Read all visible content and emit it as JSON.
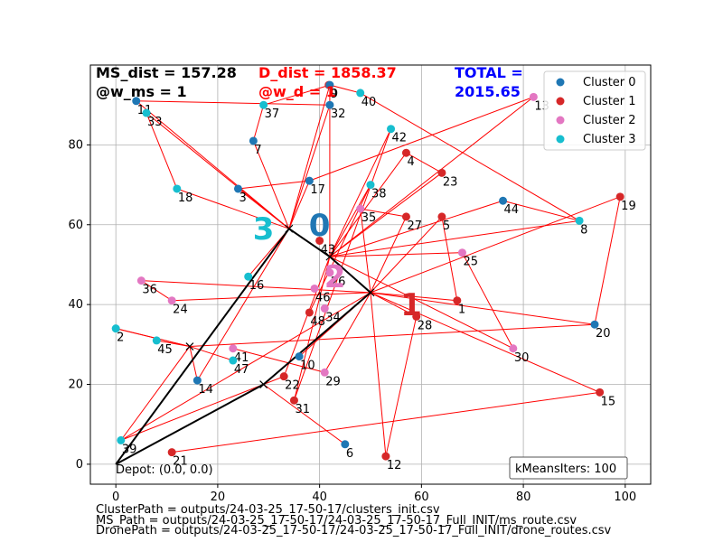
{
  "header": {
    "ms_dist": "MS_dist = 157.28",
    "w_ms": "@w_ms = 1",
    "d_dist": "D_dist = 1858.37",
    "w_d": "@w_d = 1",
    "total_line1": "TOTAL =",
    "total_line2": "2015.65"
  },
  "depot_label": "Depot: (0.0, 0.0)",
  "kmeans_label": "kMeansIters: 100",
  "footer": [
    "ClusterPath = outputs/24-03-25_17-50-17/clusters_init.csv",
    "MS_Path = outputs/24-03-25_17-50-17/24-03-25_17-50-17_Full_INIT/ms_route.csv",
    "DronePath = outputs/24-03-25_17-50-17/24-03-25_17-50-17_Full_INIT/drone_routes.csv"
  ],
  "colors": {
    "cluster0": "#1f77b4",
    "cluster1": "#d62728",
    "cluster2": "#e377c2",
    "cluster3": "#17becf",
    "ms_route": "#000000",
    "drone_route": "#ff0000",
    "total": "#0000ff"
  },
  "chart_data": {
    "type": "scatter",
    "xlim": [
      -5,
      105
    ],
    "ylim": [
      -5,
      100
    ],
    "xticks": [
      0,
      20,
      40,
      60,
      80,
      100
    ],
    "yticks": [
      0,
      20,
      40,
      60,
      80
    ],
    "grid": true,
    "legend_placement": "top-right",
    "legend": [
      "Cluster 0",
      "Cluster 1",
      "Cluster 2",
      "Cluster 3"
    ],
    "points": [
      {
        "id": "0",
        "x": 41.8,
        "y": 95.0,
        "cluster": 1
      },
      {
        "id": "1",
        "x": 67.0,
        "y": 41.0,
        "cluster": 1
      },
      {
        "id": "2",
        "x": 0.0,
        "y": 34.0,
        "cluster": 3
      },
      {
        "id": "3",
        "x": 24.0,
        "y": 69.0,
        "cluster": 0
      },
      {
        "id": "4",
        "x": 57.0,
        "y": 78.0,
        "cluster": 1
      },
      {
        "id": "5",
        "x": 64.0,
        "y": 62.0,
        "cluster": 1
      },
      {
        "id": "6",
        "x": 45.0,
        "y": 5.0,
        "cluster": 0
      },
      {
        "id": "7",
        "x": 27.0,
        "y": 81.0,
        "cluster": 0
      },
      {
        "id": "8",
        "x": 91.0,
        "y": 61.0,
        "cluster": 3
      },
      {
        "id": "9",
        "x": 42.0,
        "y": 95.0,
        "cluster": 0
      },
      {
        "id": "10",
        "x": 36.0,
        "y": 27.0,
        "cluster": 0
      },
      {
        "id": "11",
        "x": 4.0,
        "y": 91.0,
        "cluster": 0
      },
      {
        "id": "12",
        "x": 53.0,
        "y": 2.0,
        "cluster": 1
      },
      {
        "id": "13",
        "x": 82.0,
        "y": 92.0,
        "cluster": 2
      },
      {
        "id": "14",
        "x": 16.0,
        "y": 21.0,
        "cluster": 0
      },
      {
        "id": "15",
        "x": 95.0,
        "y": 18.0,
        "cluster": 1
      },
      {
        "id": "16",
        "x": 26.0,
        "y": 47.0,
        "cluster": 3
      },
      {
        "id": "17",
        "x": 38.0,
        "y": 71.0,
        "cluster": 0
      },
      {
        "id": "18",
        "x": 12.0,
        "y": 69.0,
        "cluster": 3
      },
      {
        "id": "19",
        "x": 99.0,
        "y": 67.0,
        "cluster": 1
      },
      {
        "id": "20",
        "x": 94.0,
        "y": 35.0,
        "cluster": 0
      },
      {
        "id": "21",
        "x": 11.0,
        "y": 3.0,
        "cluster": 1
      },
      {
        "id": "22",
        "x": 33.0,
        "y": 22.0,
        "cluster": 1
      },
      {
        "id": "23",
        "x": 64.0,
        "y": 73.0,
        "cluster": 1
      },
      {
        "id": "24",
        "x": 11.0,
        "y": 41.0,
        "cluster": 2
      },
      {
        "id": "25",
        "x": 68.0,
        "y": 53.0,
        "cluster": 2
      },
      {
        "id": "26",
        "x": 42.0,
        "y": 48.0,
        "cluster": 2
      },
      {
        "id": "27",
        "x": 57.0,
        "y": 62.0,
        "cluster": 1
      },
      {
        "id": "28",
        "x": 59.0,
        "y": 37.0,
        "cluster": 1
      },
      {
        "id": "29",
        "x": 41.0,
        "y": 23.0,
        "cluster": 2
      },
      {
        "id": "30",
        "x": 78.0,
        "y": 29.0,
        "cluster": 2
      },
      {
        "id": "31",
        "x": 35.0,
        "y": 16.0,
        "cluster": 1
      },
      {
        "id": "32",
        "x": 42.0,
        "y": 90.0,
        "cluster": 0
      },
      {
        "id": "33",
        "x": 6.0,
        "y": 88.0,
        "cluster": 3
      },
      {
        "id": "34",
        "x": 41.0,
        "y": 39.0,
        "cluster": 2
      },
      {
        "id": "35",
        "x": 48.0,
        "y": 64.0,
        "cluster": 2
      },
      {
        "id": "36",
        "x": 5.0,
        "y": 46.0,
        "cluster": 2
      },
      {
        "id": "37",
        "x": 29.0,
        "y": 90.0,
        "cluster": 3
      },
      {
        "id": "38",
        "x": 50.0,
        "y": 70.0,
        "cluster": 3
      },
      {
        "id": "39",
        "x": 1.0,
        "y": 6.0,
        "cluster": 3
      },
      {
        "id": "40",
        "x": 48.0,
        "y": 93.0,
        "cluster": 3
      },
      {
        "id": "41",
        "x": 23.0,
        "y": 29.0,
        "cluster": 2
      },
      {
        "id": "42",
        "x": 54.0,
        "y": 84.0,
        "cluster": 3
      },
      {
        "id": "43",
        "x": 40.0,
        "y": 56.0,
        "cluster": 1
      },
      {
        "id": "44",
        "x": 76.0,
        "y": 66.0,
        "cluster": 0
      },
      {
        "id": "45",
        "x": 8.0,
        "y": 31.0,
        "cluster": 3
      },
      {
        "id": "46",
        "x": 39.0,
        "y": 44.0,
        "cluster": 2
      },
      {
        "id": "47",
        "x": 23.0,
        "y": 26.0,
        "cluster": 3
      },
      {
        "id": "48",
        "x": 38.0,
        "y": 38.0,
        "cluster": 1
      }
    ],
    "cluster_centers": [
      {
        "label": "0",
        "x": 40.0,
        "y": 60.0,
        "cluster": 0
      },
      {
        "label": "1",
        "x": 58.0,
        "y": 40.0,
        "cluster": 1
      },
      {
        "label": "2",
        "x": 43.0,
        "y": 47.0,
        "cluster": 2
      },
      {
        "label": "3",
        "x": 29.0,
        "y": 59.0,
        "cluster": 3
      }
    ],
    "ms_route": [
      [
        0,
        0
      ],
      [
        34,
        59
      ],
      [
        42,
        52
      ],
      [
        50,
        43
      ],
      [
        29,
        20
      ],
      [
        0,
        0
      ]
    ],
    "ms_stops": [
      [
        34,
        59
      ],
      [
        42,
        52
      ],
      [
        50,
        43
      ],
      [
        29,
        20
      ],
      [
        14.5,
        29.5
      ]
    ],
    "drone_segments": [
      [
        [
          34,
          59
        ],
        [
          4,
          91
        ]
      ],
      [
        [
          4,
          91
        ],
        [
          42,
          90
        ]
      ],
      [
        [
          34,
          59
        ],
        [
          6,
          88
        ]
      ],
      [
        [
          6,
          88
        ],
        [
          12,
          69
        ]
      ],
      [
        [
          12,
          69
        ],
        [
          34,
          59
        ]
      ],
      [
        [
          34,
          59
        ],
        [
          27,
          81
        ]
      ],
      [
        [
          27,
          81
        ],
        [
          29,
          90
        ]
      ],
      [
        [
          29,
          90
        ],
        [
          42,
          95
        ]
      ],
      [
        [
          42,
          95
        ],
        [
          34,
          59
        ]
      ],
      [
        [
          34,
          59
        ],
        [
          24,
          69
        ]
      ],
      [
        [
          24,
          69
        ],
        [
          38,
          71
        ]
      ],
      [
        [
          38,
          71
        ],
        [
          34,
          59
        ]
      ],
      [
        [
          34,
          59
        ],
        [
          42,
          90
        ]
      ],
      [
        [
          34,
          59
        ],
        [
          26,
          47
        ]
      ],
      [
        [
          34,
          59
        ],
        [
          16,
          21
        ]
      ],
      [
        [
          42,
          52
        ],
        [
          42,
          95
        ]
      ],
      [
        [
          42,
          95
        ],
        [
          48,
          93
        ]
      ],
      [
        [
          48,
          93
        ],
        [
          91,
          61
        ]
      ],
      [
        [
          91,
          61
        ],
        [
          42,
          52
        ]
      ],
      [
        [
          42,
          52
        ],
        [
          54,
          84
        ]
      ],
      [
        [
          54,
          84
        ],
        [
          35,
          16
        ]
      ],
      [
        [
          35,
          16
        ],
        [
          42,
          52
        ]
      ],
      [
        [
          42,
          52
        ],
        [
          50,
          70
        ]
      ],
      [
        [
          50,
          70
        ],
        [
          38,
          38
        ]
      ],
      [
        [
          42,
          52
        ],
        [
          64,
          73
        ]
      ],
      [
        [
          64,
          73
        ],
        [
          57,
          78
        ]
      ],
      [
        [
          57,
          78
        ],
        [
          42,
          52
        ]
      ],
      [
        [
          42,
          52
        ],
        [
          82,
          92
        ]
      ],
      [
        [
          82,
          92
        ],
        [
          38,
          71
        ]
      ],
      [
        [
          42,
          52
        ],
        [
          76,
          66
        ]
      ],
      [
        [
          76,
          66
        ],
        [
          91,
          61
        ]
      ],
      [
        [
          42,
          52
        ],
        [
          68,
          53
        ]
      ],
      [
        [
          68,
          53
        ],
        [
          78,
          29
        ]
      ],
      [
        [
          78,
          29
        ],
        [
          42,
          52
        ]
      ],
      [
        [
          50,
          43
        ],
        [
          99,
          67
        ]
      ],
      [
        [
          99,
          67
        ],
        [
          94,
          35
        ]
      ],
      [
        [
          94,
          35
        ],
        [
          50,
          43
        ]
      ],
      [
        [
          50,
          43
        ],
        [
          95,
          18
        ]
      ],
      [
        [
          95,
          18
        ],
        [
          11,
          3
        ]
      ],
      [
        [
          50,
          43
        ],
        [
          64,
          62
        ]
      ],
      [
        [
          64,
          62
        ],
        [
          67,
          41
        ]
      ],
      [
        [
          67,
          41
        ],
        [
          50,
          43
        ]
      ],
      [
        [
          50,
          43
        ],
        [
          57,
          62
        ]
      ],
      [
        [
          57,
          62
        ],
        [
          48,
          64
        ]
      ],
      [
        [
          48,
          64
        ],
        [
          50,
          43
        ]
      ],
      [
        [
          50,
          43
        ],
        [
          59,
          37
        ]
      ],
      [
        [
          59,
          37
        ],
        [
          53,
          2
        ]
      ],
      [
        [
          53,
          2
        ],
        [
          50,
          43
        ]
      ],
      [
        [
          50,
          43
        ],
        [
          41,
          23
        ]
      ],
      [
        [
          41,
          23
        ],
        [
          23,
          29
        ]
      ],
      [
        [
          50,
          43
        ],
        [
          5,
          46
        ]
      ],
      [
        [
          5,
          46
        ],
        [
          11,
          41
        ]
      ],
      [
        [
          11,
          41
        ],
        [
          50,
          43
        ]
      ],
      [
        [
          50,
          43
        ],
        [
          36,
          27
        ]
      ],
      [
        [
          29,
          20
        ],
        [
          1,
          6
        ]
      ],
      [
        [
          1,
          6
        ],
        [
          50,
          43
        ]
      ],
      [
        [
          29,
          20
        ],
        [
          33,
          22
        ]
      ],
      [
        [
          33,
          22
        ],
        [
          42,
          52
        ]
      ],
      [
        [
          29,
          20
        ],
        [
          45,
          5
        ]
      ],
      [
        [
          14.5,
          29.5
        ],
        [
          0,
          34
        ]
      ],
      [
        [
          0,
          34
        ],
        [
          14.5,
          29.5
        ]
      ],
      [
        [
          14.5,
          29.5
        ],
        [
          8,
          31
        ]
      ],
      [
        [
          14.5,
          29.5
        ],
        [
          94,
          35
        ]
      ],
      [
        [
          14.5,
          29.5
        ],
        [
          23,
          26
        ]
      ],
      [
        [
          14.5,
          29.5
        ],
        [
          16,
          21
        ]
      ],
      [
        [
          14.5,
          29.5
        ],
        [
          1,
          6
        ]
      ]
    ]
  }
}
